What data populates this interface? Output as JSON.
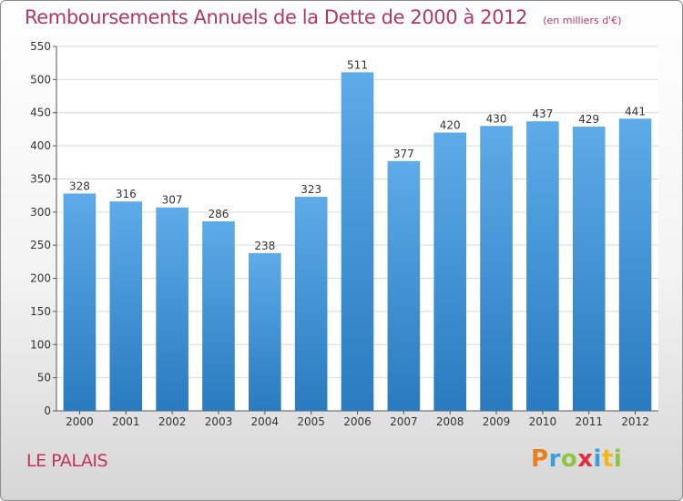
{
  "header": {
    "title": "Remboursements Annuels de la Dette de 2000 à 2012",
    "subtitle": "(en milliers d'€)"
  },
  "footer": {
    "commune": "LE PALAIS"
  },
  "brand": {
    "logo_letters": [
      "P",
      "r",
      "o",
      "x",
      "i",
      "t",
      "i"
    ],
    "logo_colors": [
      "#e8811c",
      "#3a9fd8",
      "#8cc63f",
      "#e02f3c",
      "#3a9fd8",
      "#f2b718",
      "#8cc63f"
    ]
  },
  "colors": {
    "bar_top": "#5dabe8",
    "bar_bottom": "#2a7ac0",
    "title": "#b3385f",
    "axis_text": "#333333",
    "grid": "#d9d9d9"
  },
  "chart_data": {
    "type": "bar",
    "categories": [
      "2000",
      "2001",
      "2002",
      "2003",
      "2004",
      "2005",
      "2006",
      "2007",
      "2008",
      "2009",
      "2010",
      "2011",
      "2012"
    ],
    "values": [
      328,
      316,
      307,
      286,
      238,
      323,
      511,
      377,
      420,
      430,
      437,
      429,
      441
    ],
    "title": "Remboursements Annuels de la Dette de 2000 à 2012",
    "subtitle": "(en milliers d'€)",
    "xlabel": "",
    "ylabel": "",
    "ylim": [
      0,
      550
    ],
    "yticks": [
      0,
      50,
      100,
      150,
      200,
      250,
      300,
      350,
      400,
      450,
      500,
      550
    ],
    "grid": true,
    "data_labels": true
  }
}
